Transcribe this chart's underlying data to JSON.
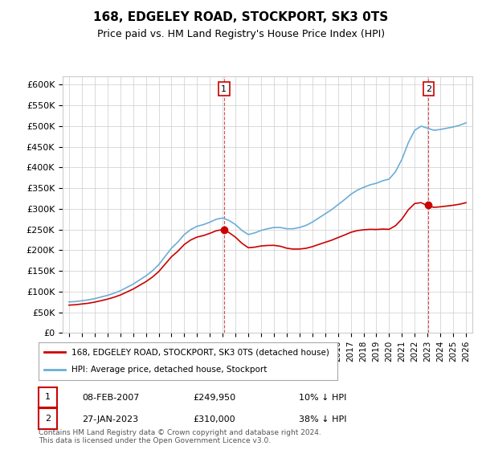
{
  "title": "168, EDGELEY ROAD, STOCKPORT, SK3 0TS",
  "subtitle": "Price paid vs. HM Land Registry's House Price Index (HPI)",
  "hpi_label": "HPI: Average price, detached house, Stockport",
  "property_label": "168, EDGELEY ROAD, STOCKPORT, SK3 0TS (detached house)",
  "footer": "Contains HM Land Registry data © Crown copyright and database right 2024.\nThis data is licensed under the Open Government Licence v3.0.",
  "hpi_color": "#6baed6",
  "property_color": "#cc0000",
  "transaction1_date": "08-FEB-2007",
  "transaction1_price": 249950,
  "transaction1_hpi_diff": "10% ↓ HPI",
  "transaction2_date": "27-JAN-2023",
  "transaction2_price": 310000,
  "transaction2_hpi_diff": "38% ↓ HPI",
  "ylim": [
    0,
    620000
  ],
  "yticks": [
    0,
    50000,
    100000,
    150000,
    200000,
    250000,
    300000,
    350000,
    400000,
    450000,
    500000,
    550000,
    600000
  ],
  "background_color": "#ffffff",
  "grid_color": "#cccccc"
}
